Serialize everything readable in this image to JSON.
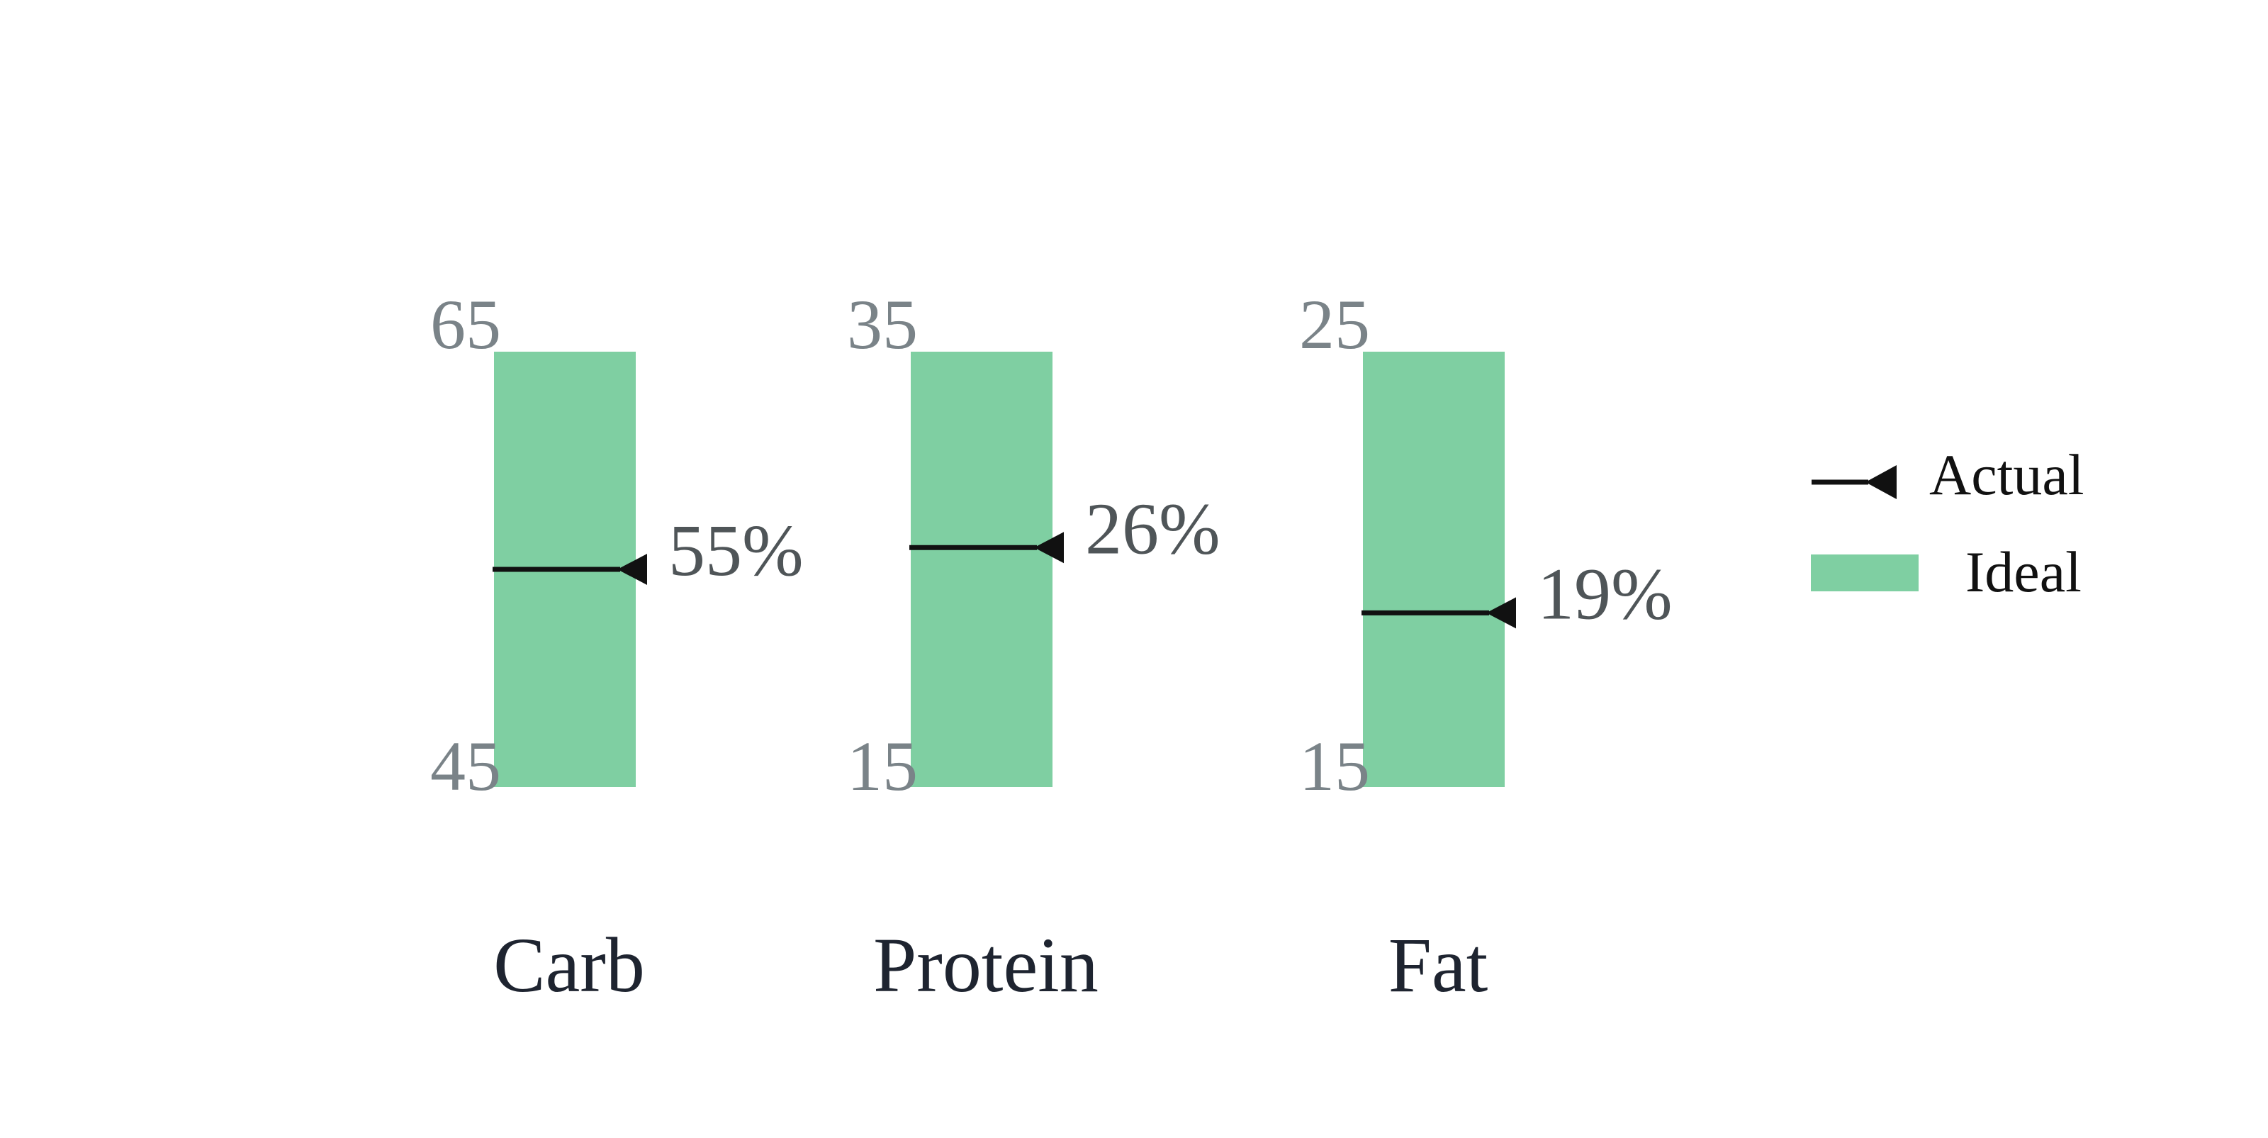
{
  "chart_data": {
    "type": "bar",
    "categories": [
      "Carb",
      "Protein",
      "Fat"
    ],
    "ideal_ranges": [
      {
        "low": 45,
        "high": 65,
        "low_label": "45",
        "high_label": "65"
      },
      {
        "low": 15,
        "high": 35,
        "low_label": "15",
        "high_label": "35"
      },
      {
        "low": 15,
        "high": 25,
        "low_label": "15",
        "high_label": "25"
      }
    ],
    "actual": [
      55,
      26,
      19
    ],
    "actual_labels": [
      "55%",
      "26%",
      "19%"
    ],
    "legend": {
      "items": [
        {
          "name": "Actual",
          "marker": "line-triangle",
          "color": "#111111"
        },
        {
          "name": "Ideal",
          "marker": "rect",
          "color": "#7fcfa2"
        }
      ],
      "position": "right"
    },
    "colors": {
      "ideal": "#7fcfa2",
      "actual": "#111111",
      "range_label": "#7a8388",
      "value_label": "#4f5558",
      "category_label": "#1e2430"
    },
    "grid": false
  }
}
